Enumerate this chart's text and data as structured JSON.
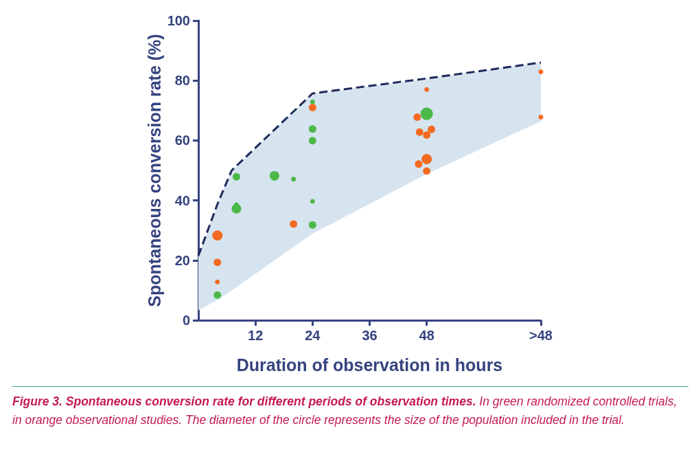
{
  "chart_data": {
    "type": "bubble",
    "xlabel": "Duration of observation in hours",
    "ylabel": "Spontaneous conversion rate (%)",
    "annotations": [
      "Figure 3. Spontaneous conversion rate for different periods of observation times.",
      "In green randomized controlled trials, in orange observational studies. The diameter of the circle represents the size of the population included in the trial."
    ],
    "xlim": [
      0,
      72
    ],
    "xticks": [
      12,
      24,
      36,
      48,
      {
        "value": 72,
        "label": ">48"
      }
    ],
    "ylim": [
      0,
      100
    ],
    "yticks": [
      0,
      20,
      40,
      60,
      80,
      100
    ],
    "series": [
      {
        "type": "line",
        "color": "#1f2a5a",
        "line_style": "dashed",
        "marker": "none",
        "x": [
          0,
          4,
          7,
          24,
          48,
          72
        ],
        "values": [
          21.5,
          38.7,
          50,
          75.7,
          80.7,
          86
        ],
        "lower": [
          3.3,
          6.7,
          9.9,
          28.9,
          48.8,
          66.4
        ],
        "upper": [
          21.5,
          38.7,
          50,
          75.7,
          80.7,
          86
        ]
      },
      {
        "color": "#4cb848",
        "x": [
          4,
          8,
          8,
          8,
          16,
          20,
          24,
          24,
          24,
          24,
          24,
          48
        ],
        "values": [
          8.4,
          47.9,
          38.5,
          37.2,
          48.2,
          47.1,
          72.9,
          63.8,
          59.9,
          39.7,
          31.8,
          68.9
        ],
        "sizes": [
          0.37,
          0.37,
          0.15,
          0.6,
          0.6,
          0.15,
          0.15,
          0.37,
          0.37,
          0.15,
          0.37,
          1
        ]
      },
      {
        "color": "#f26b21",
        "x": [
          4,
          4,
          4,
          20,
          24,
          48,
          46,
          46.5,
          48,
          49,
          48,
          46.3,
          48,
          72,
          72
        ],
        "values": [
          28.3,
          19.3,
          12.8,
          32.1,
          71,
          77,
          67.8,
          62.8,
          61.8,
          63.7,
          53.8,
          52.1,
          49.8,
          82.9,
          67.8
        ],
        "sizes": [
          0.69,
          0.37,
          0.15,
          0.37,
          0.37,
          0.15,
          0.37,
          0.37,
          0.37,
          0.37,
          0.69,
          0.37,
          0.37,
          0.15,
          0.15
        ]
      }
    ]
  }
}
